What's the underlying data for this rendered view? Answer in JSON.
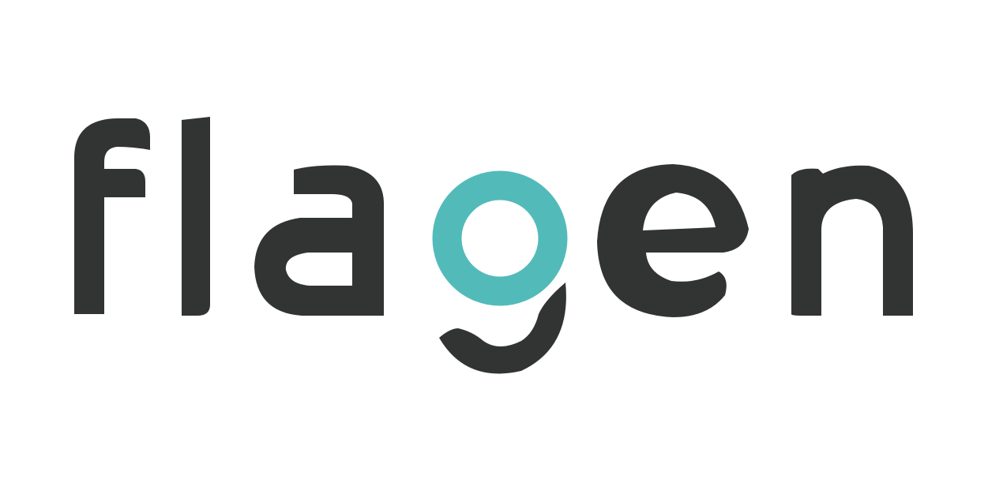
{
  "logo": {
    "wordmark": "flagen",
    "colors": {
      "letters": "#323333",
      "accent": "#52bbba",
      "background": "#ffffff"
    }
  }
}
